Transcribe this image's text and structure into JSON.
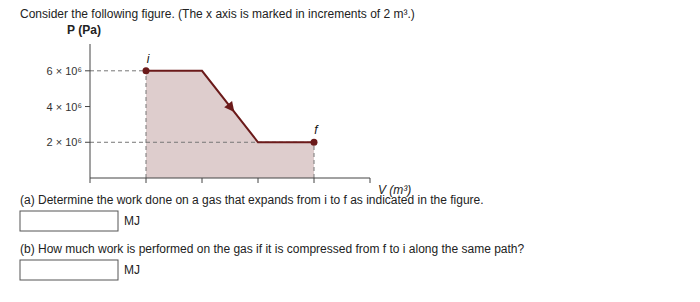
{
  "chart_data": {
    "type": "area",
    "title": "Consider the following figure. (The x axis is marked in increments of 2 m³.)",
    "x_label": "V (m³)",
    "y_label": "P (Pa)",
    "x": [
      2,
      4,
      6,
      8
    ],
    "values": [
      6000000,
      6000000,
      2000000,
      2000000
    ],
    "color": "#6b1a1a",
    "xlim": [
      0,
      10
    ],
    "xticks": [
      0,
      2,
      4,
      6,
      8,
      10
    ],
    "ylim": [
      0,
      7500000
    ],
    "yticks": [
      {
        "value": 2000000,
        "label": "2 × 10⁶"
      },
      {
        "value": 4000000,
        "label": "4 × 10⁶"
      },
      {
        "value": 6000000,
        "label": "6 × 10⁶"
      }
    ],
    "tick_labels": "y",
    "grid": false,
    "annotations": [
      {
        "text": "i",
        "x": 2,
        "y": 6000000
      },
      {
        "text": "f",
        "x": 8,
        "y": 2000000
      },
      {
        "text": "(a) Determine the work done on a gas that expands from i to f as indicated in the figure."
      },
      {
        "text": "MJ"
      },
      {
        "text": "(b) How much work is performed on the gas if it is compressed from f to i along the same path?"
      },
      {
        "text": "MJ"
      }
    ]
  }
}
